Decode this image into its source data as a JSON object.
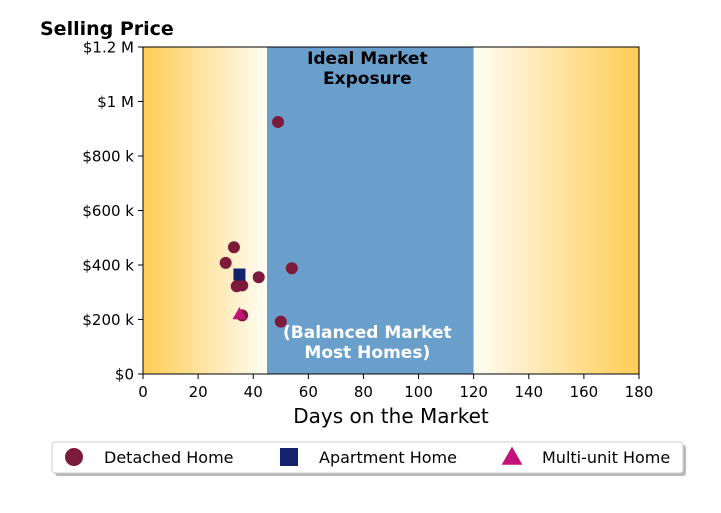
{
  "chart_data": {
    "type": "scatter",
    "title": "Selling Price",
    "xlabel": "Days on the Market",
    "ylabel": "",
    "xlim": [
      0,
      180
    ],
    "ylim": [
      0,
      1200000
    ],
    "x_ticks": [
      0,
      20,
      40,
      60,
      80,
      100,
      120,
      140,
      160,
      180
    ],
    "x_tick_labels": [
      "0",
      "20",
      "40",
      "60",
      "80",
      "100",
      "120",
      "140",
      "160",
      "180"
    ],
    "y_ticks": [
      0,
      200000,
      400000,
      600000,
      800000,
      1000000,
      1200000
    ],
    "y_tick_labels": [
      "$0",
      "$200 k",
      "$400 k",
      "$600 k",
      "$800 k",
      "$1 M",
      "$1.2 M"
    ],
    "grid": false,
    "legend_position": "bottom",
    "background_zone": {
      "x_range": [
        45,
        120
      ],
      "color": "#6a9fcc",
      "title_lines": [
        "Ideal Market",
        "Exposure"
      ],
      "subtitle_lines": [
        "(Balanced Market",
        "Most Homes)"
      ]
    },
    "gradient_colors": {
      "edge": "#ffcc55",
      "center": "#fffdf5"
    },
    "series": [
      {
        "name": "Detached Home",
        "marker": "circle",
        "color": "#7b1a3a",
        "points": [
          {
            "x": 49,
            "y": 925000
          },
          {
            "x": 33,
            "y": 465000
          },
          {
            "x": 30,
            "y": 408000
          },
          {
            "x": 54,
            "y": 388000
          },
          {
            "x": 42,
            "y": 355000
          },
          {
            "x": 34,
            "y": 322000
          },
          {
            "x": 36,
            "y": 325000
          },
          {
            "x": 36,
            "y": 215000
          },
          {
            "x": 50,
            "y": 192000
          }
        ]
      },
      {
        "name": "Apartment Home",
        "marker": "square",
        "color": "#13226b",
        "points": [
          {
            "x": 35,
            "y": 365000
          }
        ]
      },
      {
        "name": "Multi-unit Home",
        "marker": "triangle",
        "color": "#c5127a",
        "points": [
          {
            "x": 35,
            "y": 220000
          }
        ]
      }
    ]
  }
}
